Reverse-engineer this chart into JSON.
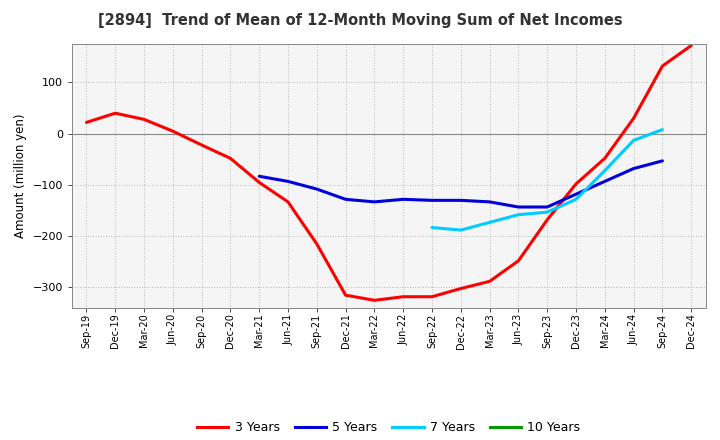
{
  "title": "[2894]  Trend of Mean of 12-Month Moving Sum of Net Incomes",
  "ylabel": "Amount (million yen)",
  "ylim": [
    -340,
    175
  ],
  "yticks": [
    -300,
    -200,
    -100,
    0,
    100
  ],
  "legend_labels": [
    "3 Years",
    "5 Years",
    "7 Years",
    "10 Years"
  ],
  "legend_colors": [
    "#ff0000",
    "#0000dd",
    "#00ccff",
    "#009900"
  ],
  "background_color": "#ffffff",
  "plot_bg_color": "#f5f5f5",
  "grid_color": "#bbbbbb",
  "x_labels": [
    "Sep-19",
    "Dec-19",
    "Mar-20",
    "Jun-20",
    "Sep-20",
    "Dec-20",
    "Mar-21",
    "Jun-21",
    "Sep-21",
    "Dec-21",
    "Mar-22",
    "Jun-22",
    "Sep-22",
    "Dec-22",
    "Mar-23",
    "Jun-23",
    "Sep-23",
    "Dec-23",
    "Mar-24",
    "Jun-24",
    "Sep-24",
    "Dec-24"
  ],
  "series_3y": [
    22,
    40,
    28,
    5,
    -22,
    -48,
    -95,
    -133,
    -215,
    -315,
    -325,
    -318,
    -318,
    -302,
    -288,
    -248,
    -168,
    -98,
    -48,
    30,
    132,
    172
  ],
  "series_5y": [
    null,
    null,
    null,
    null,
    null,
    null,
    -83,
    -93,
    -108,
    -128,
    -133,
    -128,
    -130,
    -130,
    -133,
    -143,
    -143,
    -118,
    -93,
    -68,
    -53,
    null
  ],
  "series_7y": [
    null,
    null,
    null,
    null,
    null,
    null,
    null,
    null,
    null,
    null,
    null,
    null,
    -183,
    -188,
    -173,
    -158,
    -153,
    -128,
    -72,
    -13,
    8,
    null
  ],
  "series_10y": [
    null,
    null,
    null,
    null,
    null,
    null,
    null,
    null,
    null,
    null,
    null,
    null,
    null,
    null,
    null,
    null,
    null,
    null,
    null,
    null,
    null,
    null
  ]
}
